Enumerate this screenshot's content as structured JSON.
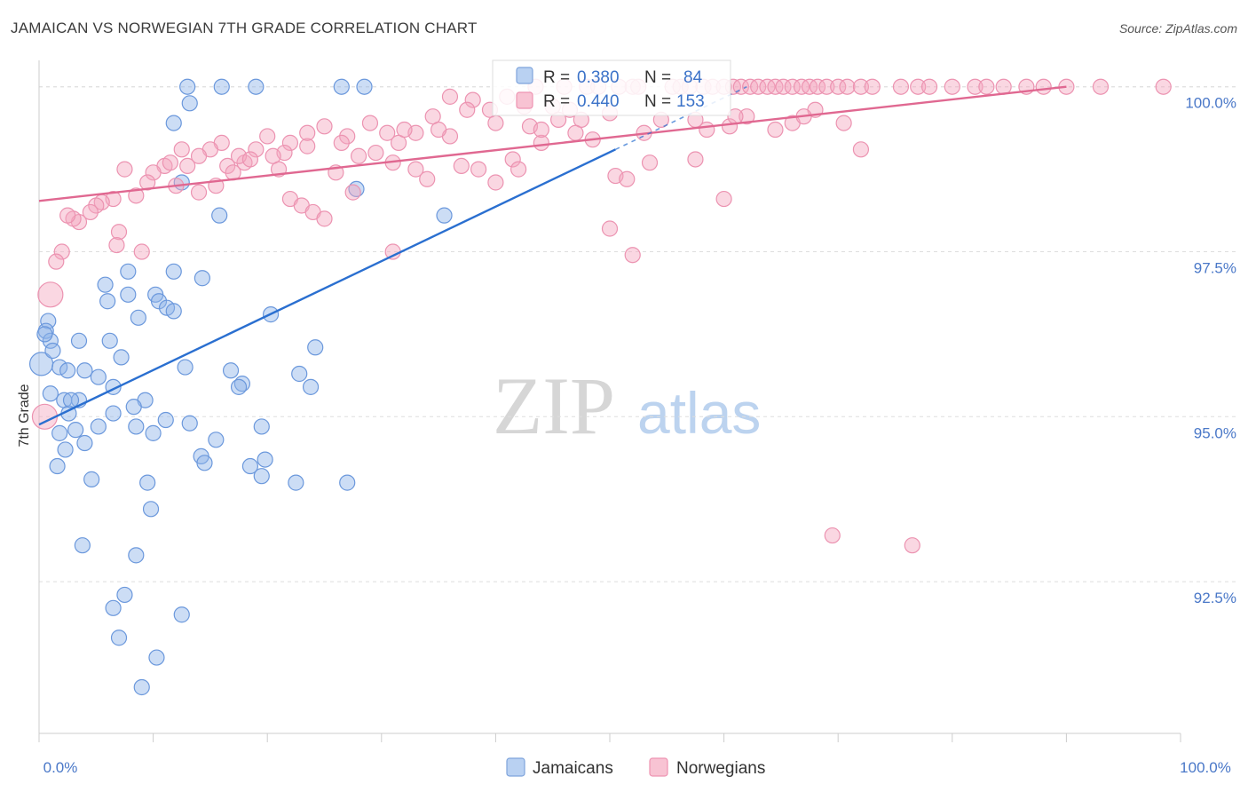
{
  "title": "JAMAICAN VS NORWEGIAN 7TH GRADE CORRELATION CHART",
  "source": "Source: ZipAtlas.com",
  "watermark": {
    "zip": "ZIP",
    "atlas": "atlas"
  },
  "colors": {
    "jamaicans": "#8fb4e8",
    "jamaicans_line": "#2a6fd0",
    "norwegians": "#f3a6bf",
    "norwegians_line": "#e06891",
    "tick_text": "#4a78c8"
  },
  "legend": {
    "jamaicans": {
      "r_label": "R =",
      "r_value": "0.380",
      "n_label": "N =",
      "n_value": "84"
    },
    "norwegians": {
      "r_label": "R =",
      "r_value": "0.440",
      "n_label": "N =",
      "n_value": "153"
    }
  },
  "chart_data": {
    "type": "scatter",
    "title": "JAMAICAN VS NORWEGIAN 7TH GRADE CORRELATION CHART",
    "xlabel": "",
    "ylabel": "7th Grade",
    "xlim": [
      0,
      100
    ],
    "ylim": [
      90.2,
      100.4
    ],
    "x_tick_labels": {
      "left": "0.0%",
      "right": "100.0%"
    },
    "y_ticks": [
      {
        "value": 100.0,
        "label": "100.0%"
      },
      {
        "value": 97.5,
        "label": "97.5%"
      },
      {
        "value": 95.0,
        "label": "95.0%"
      },
      {
        "value": 92.5,
        "label": "92.5%"
      }
    ],
    "series": [
      {
        "name": "Jamaicans",
        "r": 0.38,
        "n": 84,
        "trend": {
          "x": [
            0,
            50.5
          ],
          "y": [
            94.88,
            99.05
          ]
        },
        "points": [
          [
            13.0,
            100.0
          ],
          [
            16.0,
            100.0
          ],
          [
            19.0,
            100.0
          ],
          [
            26.5,
            100.0
          ],
          [
            28.5,
            100.0
          ],
          [
            13.2,
            99.75
          ],
          [
            11.8,
            99.45
          ],
          [
            12.5,
            98.55
          ],
          [
            27.8,
            98.45
          ],
          [
            35.5,
            98.05
          ],
          [
            15.8,
            98.05
          ],
          [
            11.8,
            97.2
          ],
          [
            14.3,
            97.1
          ],
          [
            7.8,
            97.2
          ],
          [
            5.8,
            97.0
          ],
          [
            7.8,
            96.85
          ],
          [
            10.2,
            96.85
          ],
          [
            10.5,
            96.75
          ],
          [
            6.0,
            96.75
          ],
          [
            11.2,
            96.65
          ],
          [
            11.8,
            96.6
          ],
          [
            8.7,
            96.5
          ],
          [
            20.3,
            96.55
          ],
          [
            0.8,
            96.45
          ],
          [
            0.6,
            96.3
          ],
          [
            6.2,
            96.15
          ],
          [
            1.0,
            96.15
          ],
          [
            7.2,
            95.9
          ],
          [
            24.2,
            96.05
          ],
          [
            12.8,
            95.75
          ],
          [
            1.8,
            95.75
          ],
          [
            2.5,
            95.7
          ],
          [
            4.0,
            95.7
          ],
          [
            16.8,
            95.7
          ],
          [
            22.8,
            95.65
          ],
          [
            5.2,
            95.6
          ],
          [
            17.8,
            95.5
          ],
          [
            17.5,
            95.45
          ],
          [
            23.8,
            95.45
          ],
          [
            1.0,
            95.35
          ],
          [
            2.2,
            95.25
          ],
          [
            3.5,
            95.25
          ],
          [
            9.3,
            95.25
          ],
          [
            6.5,
            95.05
          ],
          [
            2.6,
            95.05
          ],
          [
            11.1,
            94.95
          ],
          [
            3.2,
            94.8
          ],
          [
            1.8,
            94.75
          ],
          [
            4.0,
            94.6
          ],
          [
            8.5,
            94.85
          ],
          [
            10.0,
            94.75
          ],
          [
            15.5,
            94.65
          ],
          [
            14.2,
            94.4
          ],
          [
            18.5,
            94.25
          ],
          [
            14.5,
            94.3
          ],
          [
            19.5,
            94.1
          ],
          [
            19.8,
            94.35
          ],
          [
            9.5,
            94.0
          ],
          [
            4.6,
            94.05
          ],
          [
            1.6,
            94.25
          ],
          [
            22.5,
            94.0
          ],
          [
            27.0,
            94.0
          ],
          [
            9.8,
            93.6
          ],
          [
            3.8,
            93.05
          ],
          [
            8.5,
            92.9
          ],
          [
            7.5,
            92.3
          ],
          [
            6.5,
            92.1
          ],
          [
            7.0,
            91.65
          ],
          [
            10.3,
            91.35
          ],
          [
            12.5,
            92.0
          ],
          [
            9.0,
            90.9
          ],
          [
            0.2,
            95.8
          ],
          [
            2.8,
            95.25
          ],
          [
            5.2,
            94.85
          ],
          [
            2.3,
            94.5
          ],
          [
            13.2,
            94.9
          ],
          [
            19.5,
            94.85
          ],
          [
            0.5,
            96.25
          ],
          [
            3.5,
            96.15
          ],
          [
            1.2,
            96.0
          ],
          [
            6.5,
            95.45
          ],
          [
            8.3,
            95.15
          ]
        ]
      },
      {
        "name": "Norwegians",
        "r": 0.44,
        "n": 153,
        "trend": {
          "x": [
            0,
            90
          ],
          "y": [
            98.27,
            100.0
          ]
        },
        "points": [
          [
            43.5,
            100.0
          ],
          [
            46.0,
            100.0
          ],
          [
            48.0,
            100.0
          ],
          [
            49.0,
            100.0
          ],
          [
            50.8,
            100.0
          ],
          [
            52.0,
            100.0
          ],
          [
            52.5,
            100.0
          ],
          [
            55.5,
            100.0
          ],
          [
            56.2,
            100.0
          ],
          [
            57.0,
            100.0
          ],
          [
            58.2,
            100.0
          ],
          [
            59.0,
            100.0
          ],
          [
            60.0,
            100.0
          ],
          [
            60.8,
            100.0
          ],
          [
            61.5,
            100.0
          ],
          [
            62.3,
            100.0
          ],
          [
            63.0,
            100.0
          ],
          [
            63.8,
            100.0
          ],
          [
            64.5,
            100.0
          ],
          [
            65.2,
            100.0
          ],
          [
            66.0,
            100.0
          ],
          [
            66.8,
            100.0
          ],
          [
            67.5,
            100.0
          ],
          [
            68.2,
            100.0
          ],
          [
            69.0,
            100.0
          ],
          [
            70.0,
            100.0
          ],
          [
            70.8,
            100.0
          ],
          [
            72.0,
            100.0
          ],
          [
            73.0,
            100.0
          ],
          [
            75.5,
            100.0
          ],
          [
            77.0,
            100.0
          ],
          [
            78.0,
            100.0
          ],
          [
            80.0,
            100.0
          ],
          [
            82.0,
            100.0
          ],
          [
            83.0,
            100.0
          ],
          [
            84.5,
            100.0
          ],
          [
            86.5,
            100.0
          ],
          [
            88.0,
            100.0
          ],
          [
            90.0,
            100.0
          ],
          [
            93.0,
            100.0
          ],
          [
            98.5,
            100.0
          ],
          [
            41.0,
            99.85
          ],
          [
            36.0,
            99.85
          ],
          [
            45.0,
            99.7
          ],
          [
            50.0,
            99.6
          ],
          [
            38.0,
            99.8
          ],
          [
            39.5,
            99.65
          ],
          [
            34.5,
            99.55
          ],
          [
            40.0,
            99.45
          ],
          [
            43.0,
            99.4
          ],
          [
            45.5,
            99.5
          ],
          [
            47.5,
            99.5
          ],
          [
            53.0,
            99.3
          ],
          [
            57.5,
            99.5
          ],
          [
            60.5,
            99.4
          ],
          [
            62.0,
            99.55
          ],
          [
            66.0,
            99.45
          ],
          [
            68.0,
            99.65
          ],
          [
            36.0,
            99.25
          ],
          [
            33.0,
            99.3
          ],
          [
            29.0,
            99.45
          ],
          [
            30.5,
            99.3
          ],
          [
            31.5,
            99.15
          ],
          [
            27.0,
            99.25
          ],
          [
            25.0,
            99.4
          ],
          [
            23.5,
            99.1
          ],
          [
            22.0,
            99.15
          ],
          [
            21.5,
            99.0
          ],
          [
            20.0,
            99.25
          ],
          [
            19.0,
            99.05
          ],
          [
            18.0,
            98.85
          ],
          [
            17.5,
            98.95
          ],
          [
            16.5,
            98.8
          ],
          [
            16.0,
            99.15
          ],
          [
            15.0,
            99.05
          ],
          [
            14.0,
            98.95
          ],
          [
            13.0,
            98.8
          ],
          [
            12.5,
            99.05
          ],
          [
            11.0,
            98.8
          ],
          [
            10.0,
            98.7
          ],
          [
            9.5,
            98.55
          ],
          [
            8.5,
            98.35
          ],
          [
            7.5,
            98.75
          ],
          [
            6.5,
            98.3
          ],
          [
            5.5,
            98.25
          ],
          [
            5.0,
            98.2
          ],
          [
            4.5,
            98.1
          ],
          [
            3.5,
            97.95
          ],
          [
            3.0,
            98.0
          ],
          [
            2.5,
            98.05
          ],
          [
            2.0,
            97.5
          ],
          [
            1.5,
            97.35
          ],
          [
            1.0,
            96.85
          ],
          [
            0.5,
            95.0
          ],
          [
            7.0,
            97.8
          ],
          [
            9.0,
            97.5
          ],
          [
            6.8,
            97.6
          ],
          [
            12.0,
            98.5
          ],
          [
            14.0,
            98.4
          ],
          [
            15.5,
            98.5
          ],
          [
            17.0,
            98.7
          ],
          [
            18.5,
            98.9
          ],
          [
            20.5,
            98.95
          ],
          [
            21.0,
            98.75
          ],
          [
            22.0,
            98.3
          ],
          [
            23.0,
            98.2
          ],
          [
            24.0,
            98.1
          ],
          [
            25.0,
            98.0
          ],
          [
            26.0,
            98.7
          ],
          [
            27.5,
            98.4
          ],
          [
            28.0,
            98.95
          ],
          [
            29.5,
            99.0
          ],
          [
            31.0,
            98.85
          ],
          [
            33.0,
            98.75
          ],
          [
            34.0,
            98.6
          ],
          [
            37.0,
            98.8
          ],
          [
            38.5,
            98.75
          ],
          [
            40.0,
            98.55
          ],
          [
            41.5,
            98.9
          ],
          [
            42.0,
            98.75
          ],
          [
            44.0,
            99.15
          ],
          [
            47.0,
            99.3
          ],
          [
            50.5,
            98.65
          ],
          [
            51.5,
            98.6
          ],
          [
            53.5,
            98.85
          ],
          [
            57.5,
            98.9
          ],
          [
            60.0,
            98.3
          ],
          [
            72.0,
            99.05
          ],
          [
            50.0,
            97.85
          ],
          [
            31.0,
            97.5
          ],
          [
            52.0,
            97.45
          ],
          [
            69.5,
            93.2
          ],
          [
            76.5,
            93.05
          ],
          [
            23.5,
            99.3
          ],
          [
            26.5,
            99.15
          ],
          [
            32.0,
            99.35
          ],
          [
            35.0,
            99.35
          ],
          [
            37.5,
            99.65
          ],
          [
            42.5,
            99.7
          ],
          [
            46.5,
            99.65
          ],
          [
            54.5,
            99.5
          ],
          [
            58.5,
            99.35
          ],
          [
            61.0,
            99.55
          ],
          [
            64.5,
            99.35
          ],
          [
            67.0,
            99.55
          ],
          [
            70.5,
            99.45
          ],
          [
            44.0,
            99.35
          ],
          [
            48.5,
            99.2
          ],
          [
            11.5,
            98.85
          ]
        ]
      }
    ]
  },
  "bottom_legend": {
    "jamaicans": "Jamaicans",
    "norwegians": "Norwegians"
  }
}
